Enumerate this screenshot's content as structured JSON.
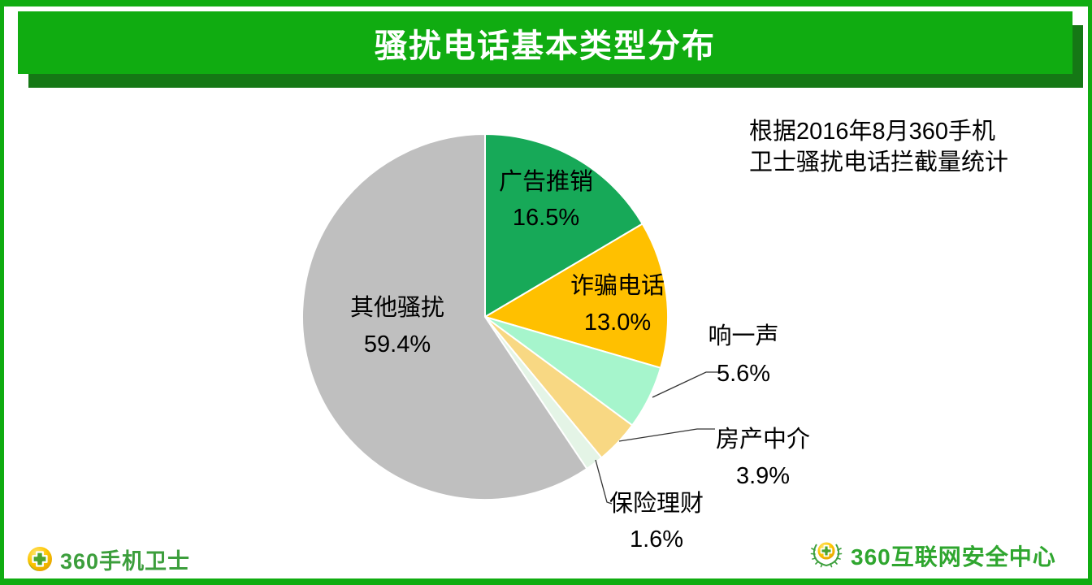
{
  "header": {
    "title": "骚扰电话基本类型分布"
  },
  "annotation": {
    "line1": "根据2016年8月360手机",
    "line2": "卫士骚扰电话拦截量统计"
  },
  "chart_data": {
    "type": "pie",
    "title": "骚扰电话基本类型分布",
    "source_note": "根据2016年8月360手机卫士骚扰电话拦截量统计",
    "start_angle_deg": 0,
    "direction": "clockwise",
    "legend_position": "none",
    "slices": [
      {
        "label": "广告推销",
        "value": 16.5,
        "display_value": "16.5%",
        "color": "#17A958",
        "label_placement": "inside"
      },
      {
        "label": "诈骗电话",
        "value": 13.0,
        "display_value": "13.0%",
        "color": "#FFC000",
        "label_placement": "inside"
      },
      {
        "label": "响一声",
        "value": 5.6,
        "display_value": "5.6%",
        "color": "#A6F5CC",
        "label_placement": "outside"
      },
      {
        "label": "房产中介",
        "value": 3.9,
        "display_value": "3.9%",
        "color": "#F8D883",
        "label_placement": "outside"
      },
      {
        "label": "保险理财",
        "value": 1.6,
        "display_value": "1.6%",
        "color": "#E4F4E6",
        "label_placement": "outside"
      },
      {
        "label": "其他骚扰",
        "value": 59.4,
        "display_value": "59.4%",
        "color": "#BFBFBF",
        "label_placement": "inside"
      }
    ]
  },
  "footer": {
    "left_logo_text": "360手机卫士",
    "right_logo_text": "360互联网安全中心"
  },
  "colors": {
    "banner_green": "#10AC11",
    "shadow_green": "#157815",
    "logo_green_left": "#3C9E3C",
    "logo_green_right": "#2FA62F",
    "pie_stroke": "#FFFFFF"
  }
}
